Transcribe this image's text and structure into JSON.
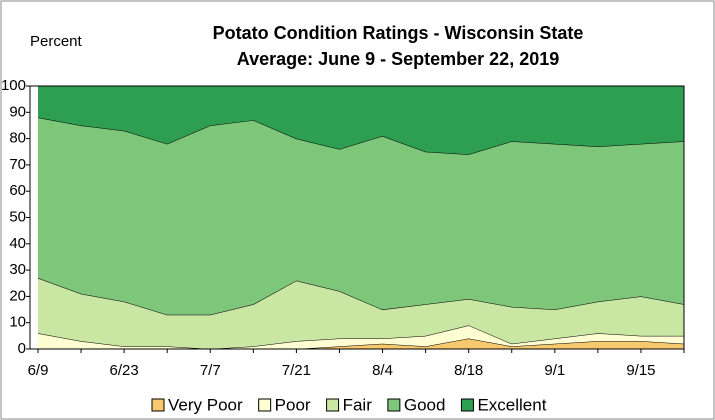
{
  "chart_data": {
    "type": "stacked_area",
    "title": "Potato Condition Ratings - Wisconsin State",
    "subtitle": "Average: June 9 - September 22, 2019",
    "ylabel": "Percent",
    "categories": [
      "6/9",
      null,
      "6/23",
      null,
      "7/7",
      null,
      "7/21",
      null,
      "8/4",
      null,
      "8/18",
      null,
      "9/1",
      null,
      "9/15",
      null
    ],
    "series": [
      {
        "name": "Very Poor",
        "color": "#f7c96e",
        "values": [
          0,
          0,
          0,
          0,
          0,
          0,
          0,
          1,
          2,
          1,
          4,
          1,
          2,
          3,
          3,
          2
        ]
      },
      {
        "name": "Poor",
        "color": "#fffdd2",
        "values": [
          6,
          3,
          1,
          1,
          0,
          1,
          3,
          3,
          2,
          4,
          5,
          1,
          2,
          3,
          2,
          3
        ]
      },
      {
        "name": "Fair",
        "color": "#c9e6a2",
        "values": [
          21,
          18,
          17,
          12,
          13,
          16,
          23,
          18,
          11,
          12,
          10,
          14,
          11,
          12,
          15,
          12
        ]
      },
      {
        "name": "Good",
        "color": "#7dc67a",
        "values": [
          61,
          64,
          65,
          65,
          72,
          70,
          54,
          54,
          66,
          58,
          55,
          63,
          63,
          59,
          58,
          62
        ]
      },
      {
        "name": "Excellent",
        "color": "#2e9e50",
        "values": [
          12,
          15,
          17,
          22,
          15,
          13,
          20,
          24,
          19,
          25,
          26,
          21,
          22,
          23,
          22,
          21
        ]
      }
    ],
    "ylim": [
      0,
      100
    ],
    "yticks": [
      0,
      10,
      20,
      30,
      40,
      50,
      60,
      70,
      80,
      90,
      100
    ],
    "legend": "bottom"
  }
}
